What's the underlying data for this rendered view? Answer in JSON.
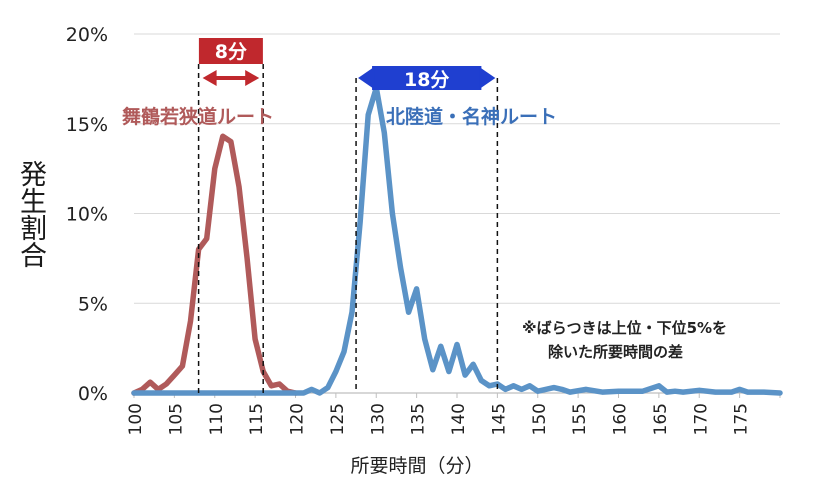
{
  "chart_data": {
    "type": "line",
    "title": "",
    "xlabel": "所要時間（分）",
    "ylabel": "発生割合",
    "xlim": [
      100,
      180
    ],
    "ylim": [
      0,
      20
    ],
    "grid": true,
    "x_ticks": [
      100,
      105,
      110,
      115,
      120,
      125,
      130,
      135,
      140,
      145,
      150,
      155,
      160,
      165,
      170,
      175
    ],
    "x_tick_labels": [
      "100",
      "105",
      "110",
      "115",
      "120",
      "125",
      "130",
      "135",
      "140",
      "145",
      "150",
      "155",
      "160",
      "165",
      "170",
      "175"
    ],
    "y_ticks": [
      0,
      5,
      10,
      15,
      20
    ],
    "y_tick_labels": [
      "0%",
      "5%",
      "10%",
      "15%",
      "20%"
    ],
    "series": [
      {
        "name": "舞鶴若狭道ルート",
        "color": "#b05a5a",
        "x": [
          100,
          101,
          102,
          103,
          104,
          105,
          106,
          107,
          108,
          109,
          110,
          111,
          112,
          113,
          114,
          115,
          116,
          117,
          118,
          119,
          120
        ],
        "y": [
          0,
          0.2,
          0.6,
          0.2,
          0.5,
          1.0,
          1.5,
          4.0,
          8.0,
          8.6,
          12.5,
          14.3,
          14.0,
          11.5,
          7.5,
          3.0,
          1.2,
          0.4,
          0.5,
          0.1,
          0
        ]
      },
      {
        "name": "北陸道・名神ルート",
        "color": "#5b93c7",
        "x": [
          100,
          120,
          121,
          122,
          123,
          124,
          125,
          126,
          127,
          128,
          129,
          130,
          131,
          132,
          133,
          134,
          135,
          136,
          137,
          138,
          139,
          140,
          141,
          142,
          143,
          144,
          145,
          146,
          147,
          148,
          149,
          150,
          152,
          153,
          154,
          156,
          158,
          160,
          163,
          165,
          166,
          167,
          168,
          170,
          172,
          174,
          175,
          176,
          178,
          180
        ],
        "y": [
          0,
          0,
          0,
          0.2,
          0,
          0.3,
          1.2,
          2.3,
          4.5,
          9.5,
          15.5,
          17.0,
          14.5,
          10.0,
          7.0,
          4.5,
          5.8,
          3.0,
          1.3,
          2.6,
          1.2,
          2.7,
          1.0,
          1.6,
          0.7,
          0.4,
          0.5,
          0.2,
          0.4,
          0.2,
          0.4,
          0.1,
          0.3,
          0.2,
          0.05,
          0.2,
          0.05,
          0.1,
          0.1,
          0.4,
          0.05,
          0.1,
          0.05,
          0.15,
          0.05,
          0.05,
          0.2,
          0.05,
          0.05,
          0
        ]
      }
    ],
    "annotations": {
      "red_range": {
        "label": "8分",
        "from": 108,
        "to": 116,
        "color": "#c0282d"
      },
      "blue_range": {
        "label": "18分",
        "from": 127.5,
        "to": 145,
        "color": "#1f3fd0"
      },
      "note_line1": "※ばらつきは上位・下位5%を",
      "note_line2": "除いた所要時間の差"
    }
  }
}
